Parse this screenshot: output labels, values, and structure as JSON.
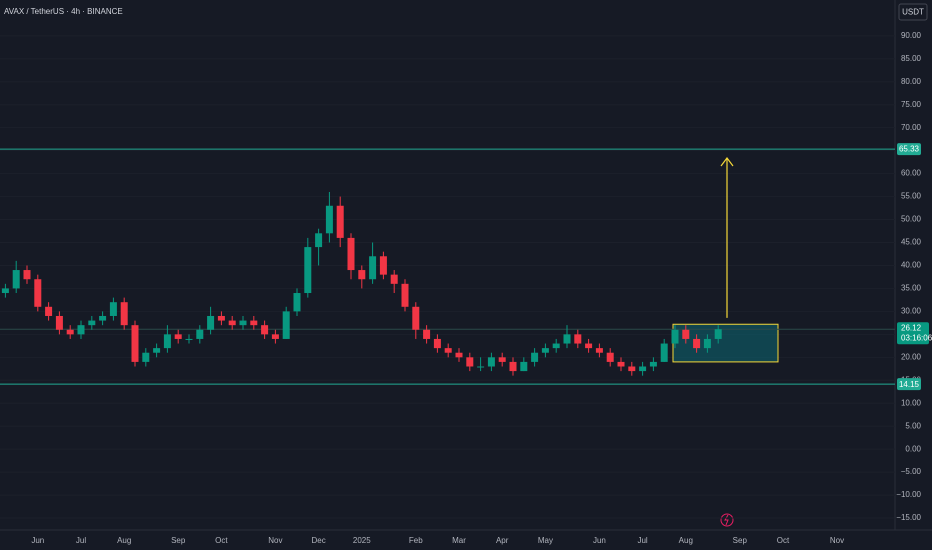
{
  "chart_data": {
    "type": "candlestick",
    "title": "AVAX / TetherUS · 4h · BINANCE",
    "quote_button": "USDT",
    "categories": [
      null,
      null,
      null,
      "Jun",
      null,
      null,
      null,
      "Jul",
      null,
      null,
      null,
      "Aug",
      null,
      null,
      null,
      null,
      "Sep",
      null,
      null,
      null,
      "Oct",
      null,
      null,
      null,
      null,
      "Nov",
      null,
      null,
      null,
      "Dec",
      null,
      null,
      null,
      "2025",
      null,
      null,
      null,
      null,
      "Feb",
      null,
      null,
      null,
      "Mar",
      null,
      null,
      null,
      "Apr",
      null,
      null,
      null,
      "May",
      null,
      null,
      null,
      null,
      "Jun",
      null,
      null,
      null,
      "Jul",
      null,
      null,
      null,
      "Aug",
      null,
      null,
      null,
      null,
      "Sep",
      null,
      null,
      null,
      "Oct",
      null,
      null,
      null,
      null,
      "Nov",
      null,
      null,
      null,
      null,
      null
    ],
    "open": [
      34,
      35,
      39,
      37,
      31,
      29,
      26,
      25,
      27,
      28,
      29,
      32,
      27,
      19,
      21,
      22,
      25,
      24,
      24,
      26,
      29,
      28,
      27,
      28,
      27,
      25,
      24,
      30,
      34,
      44,
      47,
      53,
      46,
      39,
      37,
      42,
      38,
      36,
      31,
      26,
      24,
      22,
      21,
      20,
      18,
      18,
      20,
      19,
      17,
      19,
      21,
      22,
      23,
      25,
      23,
      22,
      21,
      19,
      18,
      17,
      18,
      19,
      23,
      26,
      24,
      22,
      24,
      null,
      null,
      null,
      null,
      null,
      null,
      null,
      null,
      null,
      null,
      null,
      null,
      null,
      null,
      null,
      null
    ],
    "high": [
      36,
      41,
      40,
      38,
      32,
      30,
      27,
      28,
      29,
      30,
      33,
      33,
      28,
      22,
      23,
      27,
      26,
      25,
      27,
      31,
      30,
      29,
      29,
      29,
      28,
      26,
      31,
      35,
      46,
      48,
      56,
      55,
      47,
      40,
      45,
      43,
      39,
      37,
      32,
      27,
      25,
      23,
      22,
      21,
      20,
      21,
      21,
      20,
      20,
      22,
      23,
      24,
      27,
      26,
      24,
      23,
      22,
      20,
      19,
      19,
      20,
      24,
      27,
      27,
      25,
      25,
      27,
      null,
      null,
      null,
      null,
      null,
      null,
      null,
      null,
      null,
      null,
      null,
      null,
      null,
      null,
      null,
      null
    ],
    "low": [
      33,
      34,
      36,
      30,
      28,
      25,
      24,
      24,
      26,
      27,
      28,
      26,
      18,
      18,
      20,
      21,
      23,
      23,
      23,
      25,
      27,
      26,
      26,
      26,
      24,
      23,
      24,
      29,
      33,
      40,
      45,
      44,
      37,
      35,
      36,
      37,
      34,
      30,
      24,
      23,
      21,
      20,
      19,
      17,
      17,
      17,
      18,
      16,
      17,
      18,
      20,
      21,
      22,
      22,
      21,
      20,
      18,
      17,
      16,
      16,
      17,
      19,
      22,
      23,
      21,
      21,
      23,
      null,
      null,
      null,
      null,
      null,
      null,
      null,
      null,
      null,
      null,
      null,
      null,
      null,
      null,
      null,
      null
    ],
    "close": [
      35,
      39,
      37,
      31,
      29,
      26,
      25,
      27,
      28,
      29,
      32,
      27,
      19,
      21,
      22,
      25,
      24,
      24,
      26,
      29,
      28,
      27,
      28,
      27,
      25,
      24,
      30,
      34,
      44,
      47,
      53,
      46,
      39,
      37,
      42,
      38,
      36,
      31,
      26,
      24,
      22,
      21,
      20,
      18,
      18,
      20,
      19,
      17,
      19,
      21,
      22,
      23,
      25,
      23,
      22,
      21,
      19,
      18,
      17,
      18,
      19,
      23,
      26,
      24,
      22,
      24,
      26.12,
      null,
      null,
      null,
      null,
      null,
      null,
      null,
      null,
      null,
      null,
      null,
      null,
      null,
      null,
      null,
      null
    ],
    "up_color": "#089981",
    "down_color": "#f23645",
    "ylim": [
      -17.6,
      97.8
    ],
    "yticks": [
      {
        "value": 90,
        "label": "90.00"
      },
      {
        "value": 85,
        "label": "85.00"
      },
      {
        "value": 80,
        "label": "80.00"
      },
      {
        "value": 75,
        "label": "75.00"
      },
      {
        "value": 70,
        "label": "70.00"
      },
      {
        "value": 65,
        "label": "65.00"
      },
      {
        "value": 60,
        "label": "60.00"
      },
      {
        "value": 55,
        "label": "55.00"
      },
      {
        "value": 50,
        "label": "50.00"
      },
      {
        "value": 45,
        "label": "45.00"
      },
      {
        "value": 40,
        "label": "40.00"
      },
      {
        "value": 35,
        "label": "35.00"
      },
      {
        "value": 30,
        "label": "30.00"
      },
      {
        "value": 25,
        "label": "25.00"
      },
      {
        "value": 20,
        "label": "20.00"
      },
      {
        "value": 15,
        "label": "15.00"
      },
      {
        "value": 10,
        "label": "10.00"
      },
      {
        "value": 5,
        "label": "5.00"
      },
      {
        "value": 0,
        "label": "0.00"
      },
      {
        "value": -5,
        "label": "−5.00"
      },
      {
        "value": -10,
        "label": "−10.00"
      },
      {
        "value": -15,
        "label": "−15.00"
      }
    ],
    "grid": true,
    "levels": [
      65.33,
      14.15
    ],
    "level_color": "#22ab94",
    "last_price": 26.12,
    "countdown": "03:16:06",
    "zone": {
      "top": 27.2,
      "bottom": 19.0
    },
    "target_arrow": {
      "from": 28.6,
      "to": 63.4
    },
    "annotation_color": "#f5d838"
  }
}
